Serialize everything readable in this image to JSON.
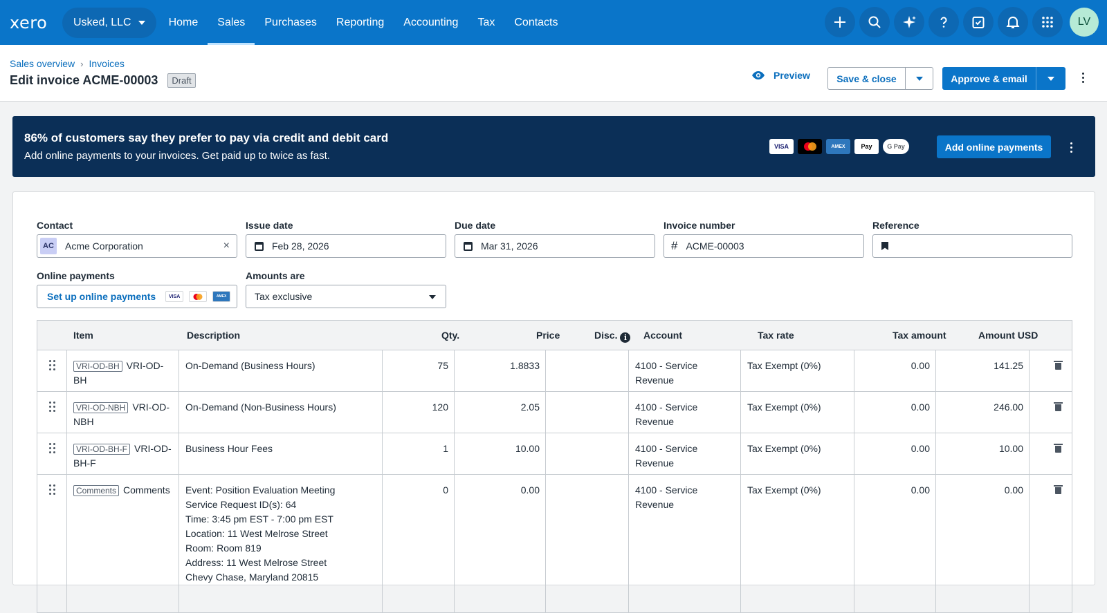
{
  "app": {
    "logo": "xero",
    "org": "Usked, LLC"
  },
  "nav": {
    "links": [
      "Home",
      "Sales",
      "Purchases",
      "Reporting",
      "Accounting",
      "Tax",
      "Contacts"
    ],
    "active": "Sales"
  },
  "user": {
    "initials": "LV"
  },
  "icons": [
    "plus-icon",
    "search-icon",
    "sparkle-icon",
    "help-icon",
    "tasks-icon",
    "bell-icon",
    "apps-grid-icon"
  ],
  "breadcrumb": {
    "first": "Sales overview",
    "separator": "›",
    "second": "Invoices"
  },
  "page": {
    "title": "Edit invoice ACME-00003",
    "status": "Draft"
  },
  "actions": {
    "preview": "Preview",
    "save": "Save & close",
    "approve": "Approve & email"
  },
  "banner": {
    "headline": "86% of customers say they prefer to pay via credit and debit card",
    "subline": "Add online payments to your invoices. Get paid up to twice as fast.",
    "cards": [
      "VISA",
      "MC",
      "AMEX",
      "Pay",
      "G Pay"
    ],
    "button": "Add online payments"
  },
  "form": {
    "contact_label": "Contact",
    "contact_initials": "AC",
    "contact_value": "Acme Corporation",
    "issue_label": "Issue date",
    "issue_value": "Feb 28, 2026",
    "due_label": "Due date",
    "due_value": "Mar 31, 2026",
    "number_label": "Invoice number",
    "number_value": "ACME-00003",
    "reference_label": "Reference",
    "reference_value": "",
    "online_label": "Online payments",
    "online_link": "Set up online payments",
    "amounts_label": "Amounts are",
    "amounts_value": "Tax exclusive"
  },
  "table": {
    "headers": {
      "item": "Item",
      "description": "Description",
      "qty": "Qty.",
      "price": "Price",
      "disc": "Disc.",
      "account": "Account",
      "tax_rate": "Tax rate",
      "tax_amount": "Tax amount",
      "amount": "Amount USD"
    },
    "rows": [
      {
        "code": "VRI-OD-BH",
        "item_l1": "VRI-OD-",
        "item_l2": "BH",
        "description": [
          "On-Demand (Business Hours)"
        ],
        "qty": "75",
        "price": "1.8833",
        "disc": "",
        "account_l1": "4100 - Service",
        "account_l2": "Revenue",
        "tax_rate": "Tax Exempt (0%)",
        "tax_amount": "0.00",
        "amount": "141.25"
      },
      {
        "code": "VRI-OD-NBH",
        "item_l1": "VRI-OD-",
        "item_l2": "NBH",
        "description": [
          "On-Demand (Non-Business Hours)"
        ],
        "qty": "120",
        "price": "2.05",
        "disc": "",
        "account_l1": "4100 - Service",
        "account_l2": "Revenue",
        "tax_rate": "Tax Exempt (0%)",
        "tax_amount": "0.00",
        "amount": "246.00"
      },
      {
        "code": "VRI-OD-BH-F",
        "item_l1": "VRI-OD-",
        "item_l2": "BH-F",
        "description": [
          "Business Hour Fees"
        ],
        "qty": "1",
        "price": "10.00",
        "disc": "",
        "account_l1": "4100 - Service",
        "account_l2": "Revenue",
        "tax_rate": "Tax Exempt (0%)",
        "tax_amount": "0.00",
        "amount": "10.00"
      },
      {
        "code": "Comments",
        "item_l1": "Comments",
        "item_l2": "",
        "description": [
          "Event: Position Evaluation Meeting",
          "Service Request ID(s): 64",
          "Time: 3:45 pm EST - 7:00 pm EST",
          "Location: 11 West Melrose Street",
          "Room: Room 819",
          "Address: 11 West Melrose Street",
          "Chevy Chase, Maryland 20815"
        ],
        "qty": "0",
        "price": "0.00",
        "disc": "",
        "account_l1": "4100 - Service",
        "account_l2": "Revenue",
        "tax_rate": "Tax Exempt (0%)",
        "tax_amount": "0.00",
        "amount": "0.00"
      }
    ]
  }
}
